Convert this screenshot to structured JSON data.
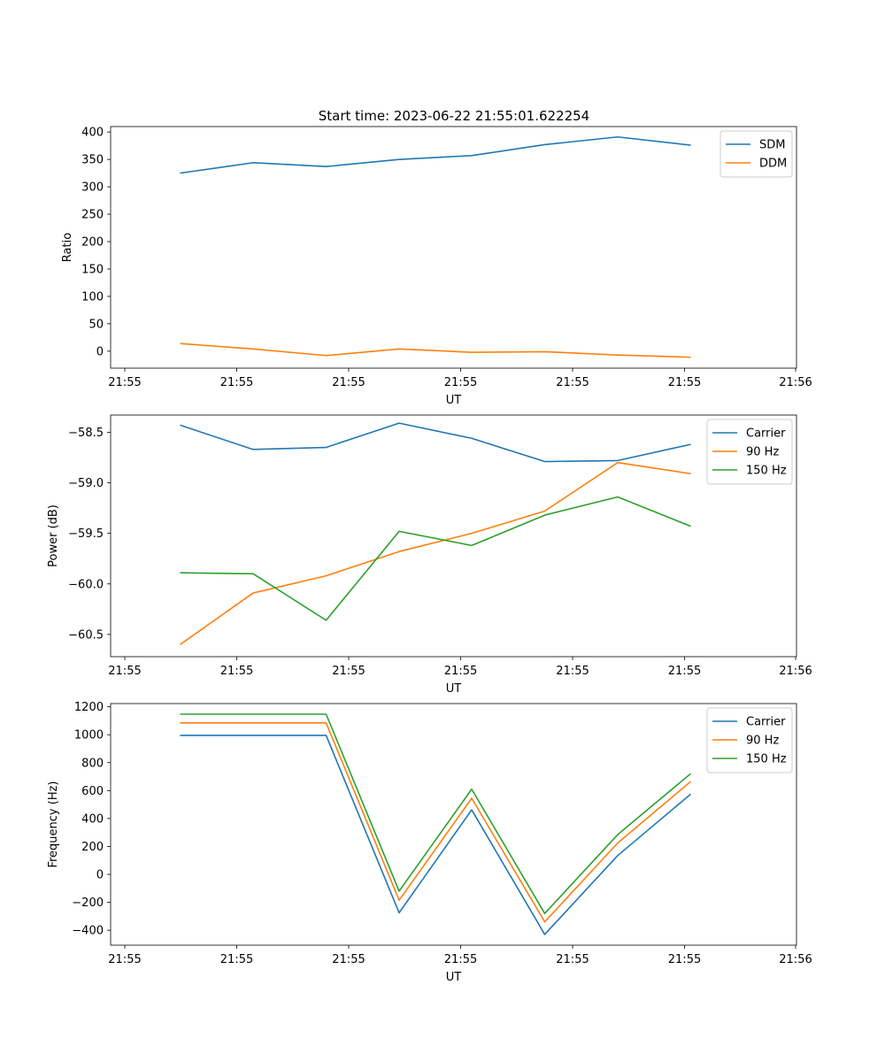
{
  "figure_title": "Start time: 2023-06-22 21:55:01.622254",
  "chart_data": [
    {
      "type": "line",
      "xlabel": "UT",
      "ylabel": "Ratio",
      "x_tick_labels": [
        "21:55",
        "21:55",
        "21:55",
        "21:55",
        "21:55",
        "21:55",
        "21:56"
      ],
      "y_ticks": [
        0,
        50,
        100,
        150,
        200,
        250,
        300,
        350,
        400
      ],
      "ylim": [
        -31,
        410
      ],
      "x": [
        1,
        2,
        3,
        4,
        5,
        6,
        7,
        8
      ],
      "xlim": [
        0.2,
        9.4
      ],
      "legend_position": "top-right",
      "grid": false,
      "series": [
        {
          "name": "SDM",
          "color": "#1f77b4",
          "values": [
            325,
            344,
            337,
            350,
            357,
            377,
            391,
            376
          ]
        },
        {
          "name": "DDM",
          "color": "#ff7f0e",
          "values": [
            14,
            4,
            -8,
            4,
            -2,
            -1,
            -7,
            -11
          ]
        }
      ]
    },
    {
      "type": "line",
      "xlabel": "UT",
      "ylabel": "Power (dB)",
      "x_tick_labels": [
        "21:55",
        "21:55",
        "21:55",
        "21:55",
        "21:55",
        "21:55",
        "21:56"
      ],
      "y_ticks": [
        -58.5,
        -59.0,
        -59.5,
        -60.0,
        -60.5
      ],
      "y_tick_labels": [
        "−58.5",
        "−59.0",
        "−59.5",
        "−60.0",
        "−60.5"
      ],
      "ylim": [
        -60.72,
        -58.33
      ],
      "x": [
        1,
        2,
        3,
        4,
        5,
        6,
        7,
        8
      ],
      "xlim": [
        0.2,
        9.4
      ],
      "legend_position": "top-right",
      "grid": false,
      "series": [
        {
          "name": "Carrier",
          "color": "#1f77b4",
          "values": [
            -58.43,
            -58.67,
            -58.65,
            -58.41,
            -58.56,
            -58.79,
            -58.78,
            -58.62
          ]
        },
        {
          "name": "90 Hz",
          "color": "#ff7f0e",
          "values": [
            -60.6,
            -60.09,
            -59.92,
            -59.68,
            -59.5,
            -59.28,
            -58.8,
            -58.91
          ]
        },
        {
          "name": "150 Hz",
          "color": "#2ca02c",
          "values": [
            -59.89,
            -59.9,
            -60.36,
            -59.48,
            -59.62,
            -59.32,
            -59.14,
            -59.43
          ]
        }
      ]
    },
    {
      "type": "line",
      "xlabel": "UT",
      "ylabel": "Frequency (Hz)",
      "x_tick_labels": [
        "21:55",
        "21:55",
        "21:55",
        "21:55",
        "21:55",
        "21:55",
        "21:56"
      ],
      "y_ticks": [
        -400,
        -200,
        0,
        200,
        400,
        600,
        800,
        1000,
        1200
      ],
      "y_tick_labels": [
        "−400",
        "−200",
        "0",
        "200",
        "400",
        "600",
        "800",
        "1000",
        "1200"
      ],
      "ylim": [
        -507,
        1223
      ],
      "x": [
        1,
        2,
        3,
        4,
        5,
        6,
        7,
        8
      ],
      "xlim": [
        0.2,
        9.4
      ],
      "legend_position": "top-right",
      "grid": false,
      "series": [
        {
          "name": "Carrier",
          "color": "#1f77b4",
          "values": [
            995,
            995,
            995,
            -275,
            462,
            -430,
            135,
            575
          ]
        },
        {
          "name": "90 Hz",
          "color": "#ff7f0e",
          "values": [
            1085,
            1085,
            1085,
            -185,
            545,
            -340,
            225,
            665
          ]
        },
        {
          "name": "150 Hz",
          "color": "#2ca02c",
          "values": [
            1147,
            1147,
            1147,
            -120,
            610,
            -280,
            285,
            722
          ]
        }
      ]
    }
  ]
}
